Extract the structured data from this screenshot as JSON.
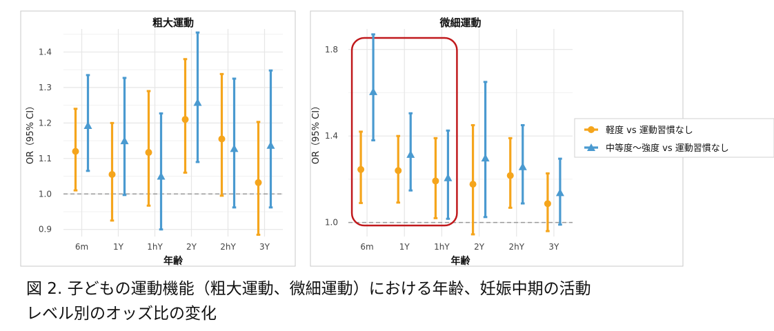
{
  "figure": {
    "legend": [
      {
        "label": "軽度 vs 運動習慣なし",
        "color": "#F5A51C",
        "marker": "circle"
      },
      {
        "label": "中等度〜強度 vs 運動習慣なし",
        "color": "#4A9AD0",
        "marker": "triangle"
      }
    ],
    "caption": {
      "line1": "図 2. 子どもの運動機能（粗大運動、微細運動）における年齢、妊娠中期の活動",
      "line2": "レベル別のオッズ比の変化"
    }
  },
  "chart_data": [
    {
      "type": "errorbar",
      "title": "粗大運動",
      "xlabel": "年齢",
      "ylabel": "OR（95% CI）",
      "categories": [
        "6m",
        "1Y",
        "1hY",
        "2Y",
        "2hY",
        "3Y"
      ],
      "yticks": [
        0.9,
        1.0,
        1.1,
        1.2,
        1.3,
        1.4
      ],
      "ylim": [
        0.88,
        1.465
      ],
      "reference_line": 1.0,
      "series": [
        {
          "name": "軽度 vs 運動習慣なし",
          "estimate": [
            1.12,
            1.055,
            1.117,
            1.21,
            1.155,
            1.032
          ],
          "lower": [
            1.01,
            0.925,
            0.967,
            1.06,
            0.995,
            0.885
          ],
          "upper": [
            1.24,
            1.2,
            1.29,
            1.38,
            1.338,
            1.203
          ]
        },
        {
          "name": "中等度〜強度 vs 運動習慣なし",
          "estimate": [
            1.193,
            1.15,
            1.05,
            1.258,
            1.128,
            1.137
          ],
          "lower": [
            1.065,
            0.997,
            0.9,
            1.09,
            0.962,
            0.962
          ],
          "upper": [
            1.335,
            1.327,
            1.227,
            1.455,
            1.325,
            1.348
          ]
        }
      ]
    },
    {
      "type": "errorbar",
      "title": "微細運動",
      "xlabel": "年齢",
      "ylabel": "OR（95% CI）",
      "categories": [
        "6m",
        "1Y",
        "1hY",
        "2Y",
        "2hY",
        "3Y"
      ],
      "yticks": [
        1.0,
        1.4,
        1.8
      ],
      "ylim": [
        0.935,
        1.895
      ],
      "reference_line": 1.0,
      "highlight": [
        "6m",
        "1Y",
        "1hY"
      ],
      "series": [
        {
          "name": "軽度 vs 運動習慣なし",
          "estimate": [
            1.245,
            1.24,
            1.192,
            1.177,
            1.217,
            1.087
          ],
          "lower": [
            1.09,
            1.092,
            1.02,
            0.945,
            1.068,
            0.96
          ],
          "upper": [
            1.42,
            1.4,
            1.39,
            1.45,
            1.39,
            1.227
          ]
        },
        {
          "name": "中等度〜強度 vs 運動習慣なし",
          "estimate": [
            1.605,
            1.315,
            1.207,
            1.298,
            1.258,
            1.138
          ],
          "lower": [
            1.38,
            1.148,
            1.017,
            1.025,
            1.088,
            0.99
          ],
          "upper": [
            1.87,
            1.505,
            1.425,
            1.65,
            1.45,
            1.295
          ]
        }
      ]
    }
  ]
}
